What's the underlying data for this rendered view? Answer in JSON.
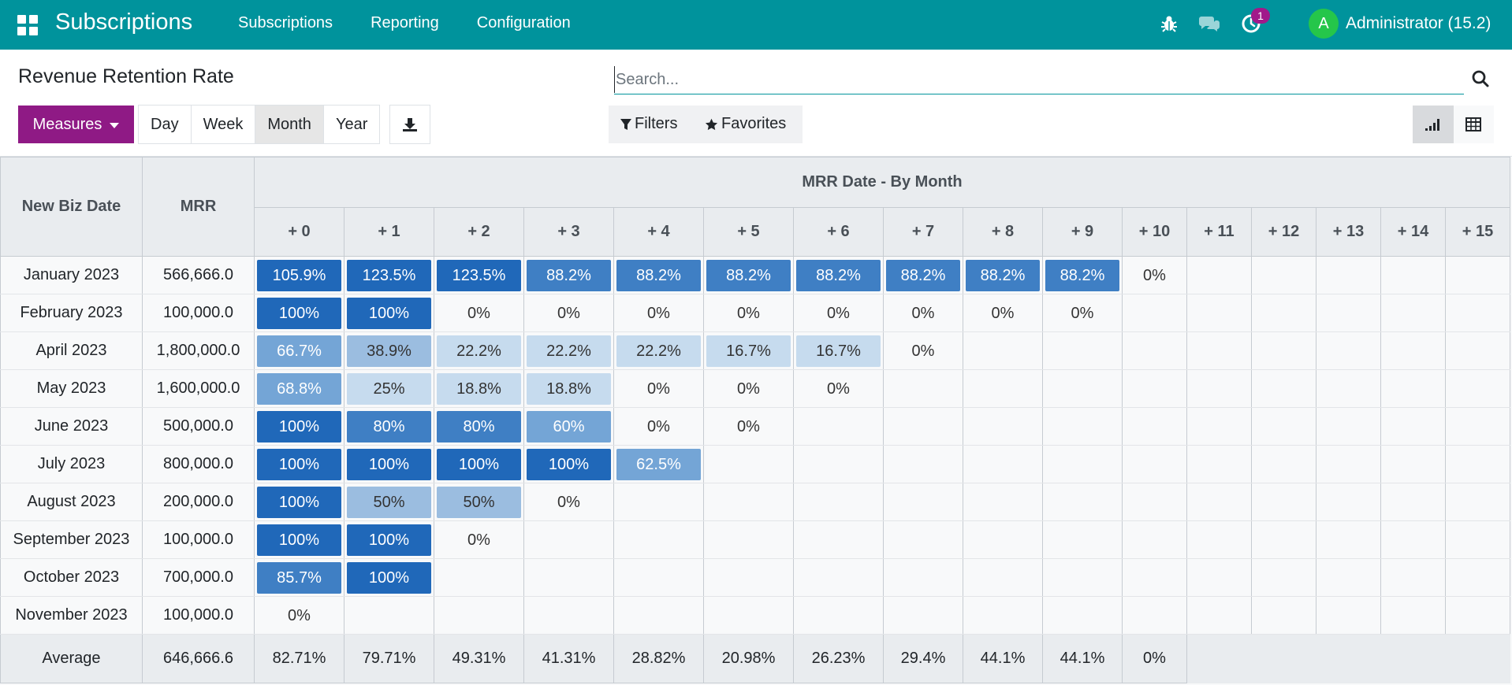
{
  "navbar": {
    "brand": "Subscriptions",
    "menu": [
      "Subscriptions",
      "Reporting",
      "Configuration"
    ],
    "activity_count": "1",
    "avatar_letter": "A",
    "user_name": "Administrator (15.2)",
    "bg_color": "#00939c"
  },
  "control_panel": {
    "title": "Revenue Retention Rate",
    "measures_label": "Measures",
    "intervals": [
      "Day",
      "Week",
      "Month",
      "Year"
    ],
    "active_interval": "Month",
    "search_placeholder": "Search...",
    "filters_label": "Filters",
    "favorites_label": "Favorites",
    "active_view": "cohort"
  },
  "table": {
    "col_date": "New Biz Date",
    "col_measure": "MRR",
    "group_title": "MRR Date - By Month",
    "periods": [
      "+ 0",
      "+ 1",
      "+ 2",
      "+ 3",
      "+ 4",
      "+ 5",
      "+ 6",
      "+ 7",
      "+ 8",
      "+ 9",
      "+ 10",
      "+ 11",
      "+ 12",
      "+ 13",
      "+ 14",
      "+ 15"
    ],
    "rows": [
      {
        "label": "January 2023",
        "mrr": "566,666.0",
        "values": [
          "105.9%",
          "123.5%",
          "123.5%",
          "88.2%",
          "88.2%",
          "88.2%",
          "88.2%",
          "88.2%",
          "88.2%",
          "88.2%",
          "0%"
        ],
        "levels": [
          5,
          5,
          5,
          4,
          4,
          4,
          4,
          4,
          4,
          4,
          0
        ]
      },
      {
        "label": "February 2023",
        "mrr": "100,000.0",
        "values": [
          "100%",
          "100%",
          "0%",
          "0%",
          "0%",
          "0%",
          "0%",
          "0%",
          "0%",
          "0%"
        ],
        "levels": [
          5,
          5,
          0,
          0,
          0,
          0,
          0,
          0,
          0,
          0
        ]
      },
      {
        "label": "April 2023",
        "mrr": "1,800,000.0",
        "values": [
          "66.7%",
          "38.9%",
          "22.2%",
          "22.2%",
          "22.2%",
          "16.7%",
          "16.7%",
          "0%"
        ],
        "levels": [
          3,
          2,
          1,
          1,
          1,
          1,
          1,
          0
        ]
      },
      {
        "label": "May 2023",
        "mrr": "1,600,000.0",
        "values": [
          "68.8%",
          "25%",
          "18.8%",
          "18.8%",
          "0%",
          "0%",
          "0%"
        ],
        "levels": [
          3,
          1,
          1,
          1,
          0,
          0,
          0
        ]
      },
      {
        "label": "June 2023",
        "mrr": "500,000.0",
        "values": [
          "100%",
          "80%",
          "80%",
          "60%",
          "0%",
          "0%"
        ],
        "levels": [
          5,
          4,
          4,
          3,
          0,
          0
        ]
      },
      {
        "label": "July 2023",
        "mrr": "800,000.0",
        "values": [
          "100%",
          "100%",
          "100%",
          "100%",
          "62.5%"
        ],
        "levels": [
          5,
          5,
          5,
          5,
          3
        ]
      },
      {
        "label": "August 2023",
        "mrr": "200,000.0",
        "values": [
          "100%",
          "50%",
          "50%",
          "0%"
        ],
        "levels": [
          5,
          2,
          2,
          0
        ]
      },
      {
        "label": "September 2023",
        "mrr": "100,000.0",
        "values": [
          "100%",
          "100%",
          "0%"
        ],
        "levels": [
          5,
          5,
          0
        ]
      },
      {
        "label": "October 2023",
        "mrr": "700,000.0",
        "values": [
          "85.7%",
          "100%"
        ],
        "levels": [
          4,
          5
        ]
      },
      {
        "label": "November 2023",
        "mrr": "100,000.0",
        "values": [
          "0%"
        ],
        "levels": [
          0
        ]
      }
    ],
    "average": {
      "label": "Average",
      "mrr": "646,666.6",
      "values": [
        "82.71%",
        "79.71%",
        "49.31%",
        "41.31%",
        "28.82%",
        "20.98%",
        "26.23%",
        "29.4%",
        "44.1%",
        "44.1%",
        "0%"
      ]
    }
  }
}
